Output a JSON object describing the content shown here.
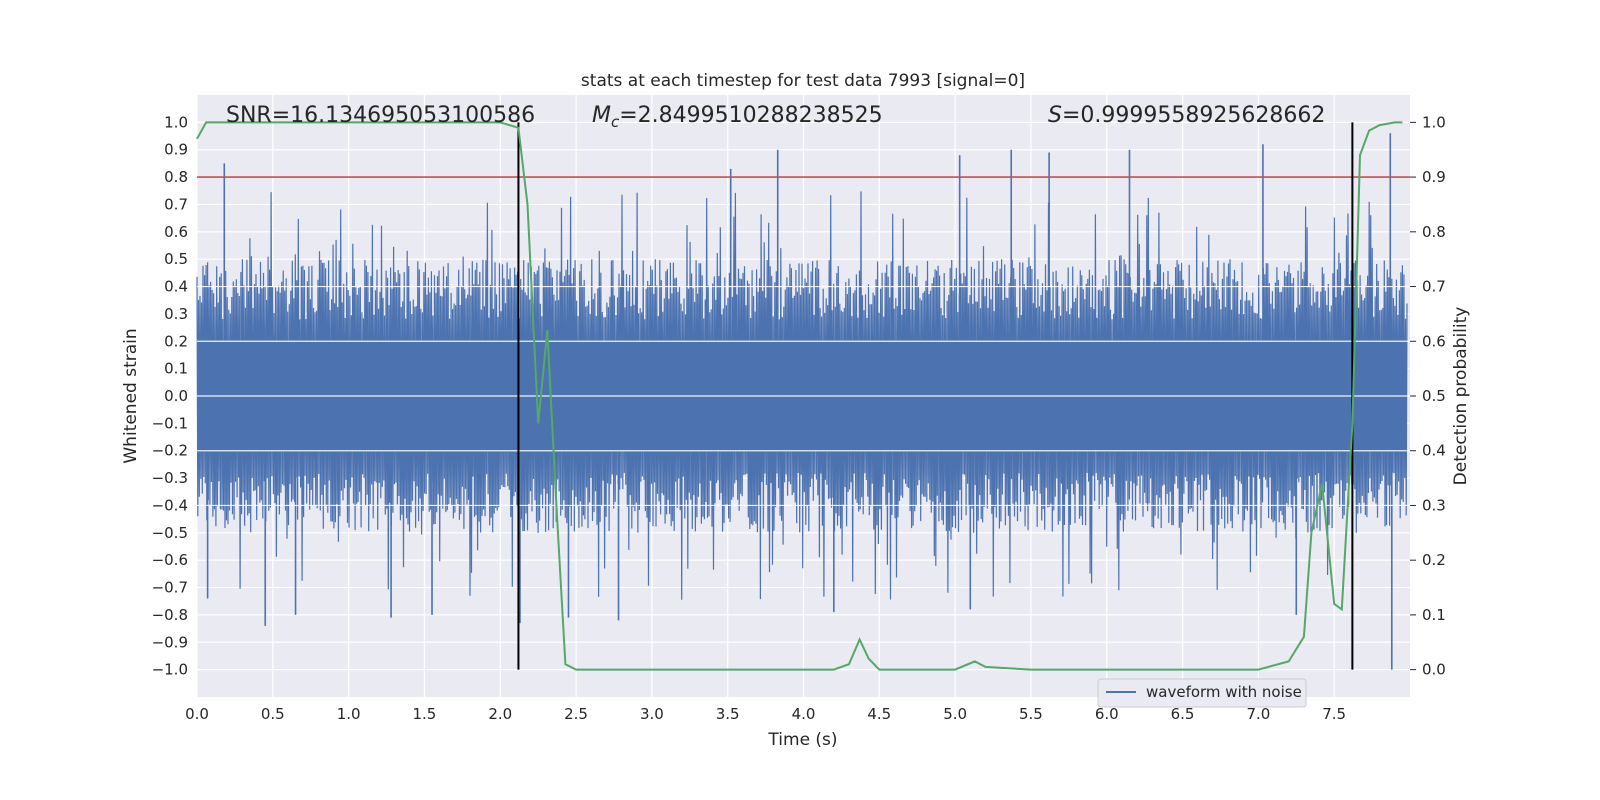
{
  "chart_data": {
    "type": "line",
    "title": "stats at each timestep for test data 7993 [signal=0]",
    "xlabel": "Time (s)",
    "ylabel": "Whitened strain",
    "y2label": "Detection probability",
    "xlim": [
      0.0,
      8.0
    ],
    "ylim": [
      -1.1,
      1.1
    ],
    "y2lim": [
      -0.05,
      1.05
    ],
    "xticks": [
      0.0,
      0.5,
      1.0,
      1.5,
      2.0,
      2.5,
      3.0,
      3.5,
      4.0,
      4.5,
      5.0,
      5.5,
      6.0,
      6.5,
      7.0,
      7.5
    ],
    "xtick_labels": [
      "0.0",
      "0.5",
      "1.0",
      "1.5",
      "2.0",
      "2.5",
      "3.0",
      "3.5",
      "4.0",
      "4.5",
      "5.0",
      "5.5",
      "6.0",
      "6.5",
      "7.0",
      "7.5"
    ],
    "yticks": [
      -1.0,
      -0.9,
      -0.8,
      -0.7,
      -0.6,
      -0.5,
      -0.4,
      -0.3,
      -0.2,
      -0.1,
      0.0,
      0.1,
      0.2,
      0.3,
      0.4,
      0.5,
      0.6,
      0.7,
      0.8,
      0.9,
      1.0
    ],
    "ytick_labels": [
      "−1.0",
      "−0.9",
      "−0.8",
      "−0.7",
      "−0.6",
      "−0.5",
      "−0.4",
      "−0.3",
      "−0.2",
      "−0.1",
      "0.0",
      "0.1",
      "0.2",
      "0.3",
      "0.4",
      "0.5",
      "0.6",
      "0.7",
      "0.8",
      "0.9",
      "1.0"
    ],
    "y2ticks": [
      0.0,
      0.1,
      0.2,
      0.3,
      0.4,
      0.5,
      0.6,
      0.7,
      0.8,
      0.9,
      1.0
    ],
    "y2tick_labels": [
      "0.0",
      "0.1",
      "0.2",
      "0.3",
      "0.4",
      "0.5",
      "0.6",
      "0.7",
      "0.8",
      "0.9",
      "1.0"
    ],
    "annotations": {
      "snr": "SNR=16.134695053100586",
      "mc_symbol": "M",
      "mc_sub": "c",
      "mc_value": "=2.8499510288238525",
      "s_symbol": "S",
      "s_value": "=0.9999558925628662"
    },
    "threshold": {
      "value": 0.9,
      "axis": "y2",
      "color": "#c44e52"
    },
    "vlines": [
      2.12,
      7.62
    ],
    "legend": {
      "label": "waveform with noise",
      "placement": "lower-right"
    },
    "series": [
      {
        "name": "waveform with noise",
        "axis": "y1",
        "color": "#4c72b0",
        "description": "dense noisy strain; envelope ~±0.3–0.5 with spikes up to ~0.9 and down to ~-1.0",
        "spikes": [
          {
            "x": 0.18,
            "y": 0.85
          },
          {
            "x": 0.45,
            "y": -0.84
          },
          {
            "x": 0.07,
            "y": -0.74
          },
          {
            "x": 0.65,
            "y": -0.8
          },
          {
            "x": 1.55,
            "y": -0.8
          },
          {
            "x": 1.28,
            "y": -0.81
          },
          {
            "x": 3.83,
            "y": 0.9
          },
          {
            "x": 3.52,
            "y": 0.83
          },
          {
            "x": 5.37,
            "y": 0.9
          },
          {
            "x": 6.15,
            "y": 0.9
          },
          {
            "x": 5.03,
            "y": 0.88
          },
          {
            "x": 5.62,
            "y": 0.89
          },
          {
            "x": 7.03,
            "y": 0.92
          },
          {
            "x": 7.87,
            "y": 0.96
          },
          {
            "x": 7.88,
            "y": -1.0
          },
          {
            "x": 2.13,
            "y": -0.83
          },
          {
            "x": 4.2,
            "y": -0.79
          },
          {
            "x": 5.1,
            "y": -0.78
          },
          {
            "x": 2.45,
            "y": -0.81
          },
          {
            "x": 2.78,
            "y": -0.82
          },
          {
            "x": 7.25,
            "y": -0.8
          }
        ]
      },
      {
        "name": "detection probability",
        "axis": "y2",
        "color": "#55a868",
        "x": [
          0.0,
          0.06,
          0.5,
          1.0,
          1.5,
          2.0,
          2.12,
          2.18,
          2.25,
          2.31,
          2.37,
          2.43,
          2.5,
          2.6,
          3.0,
          3.5,
          4.0,
          4.2,
          4.3,
          4.37,
          4.43,
          4.5,
          4.7,
          5.0,
          5.13,
          5.2,
          5.5,
          6.0,
          6.5,
          7.0,
          7.2,
          7.3,
          7.35,
          7.42,
          7.5,
          7.55,
          7.62,
          7.67,
          7.73,
          7.8,
          7.9,
          7.95
        ],
        "y": [
          0.97,
          1.0,
          1.0,
          1.0,
          1.0,
          1.0,
          0.99,
          0.85,
          0.45,
          0.62,
          0.3,
          0.01,
          0.0,
          0.0,
          0.0,
          0.0,
          0.0,
          0.0,
          0.01,
          0.055,
          0.02,
          0.0,
          0.0,
          0.0,
          0.015,
          0.005,
          0.0,
          0.0,
          0.0,
          0.0,
          0.015,
          0.06,
          0.25,
          0.34,
          0.12,
          0.11,
          0.45,
          0.94,
          0.985,
          0.995,
          1.0,
          1.0
        ]
      }
    ]
  }
}
